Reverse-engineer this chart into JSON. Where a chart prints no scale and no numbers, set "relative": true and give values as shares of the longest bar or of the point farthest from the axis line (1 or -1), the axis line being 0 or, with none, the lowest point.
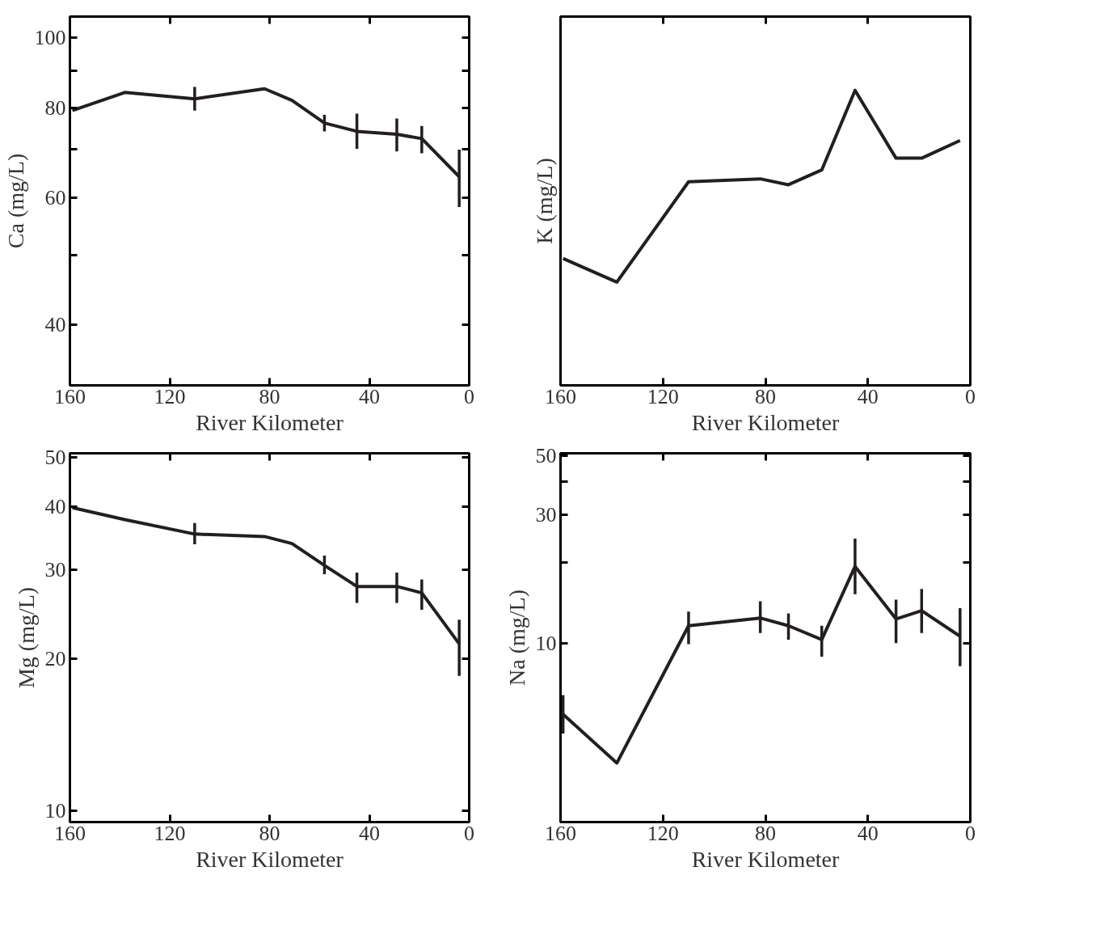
{
  "chart_data": [
    {
      "type": "line",
      "xlabel": "River Kilometer",
      "ylabel": "Ca (mg/L)",
      "log": "y",
      "line_style": "solid",
      "x": [
        159,
        138,
        110,
        82,
        71,
        58,
        45,
        29,
        19,
        4
      ],
      "xlim": [
        160,
        0
      ],
      "xticks": [
        160,
        120,
        80,
        40,
        0
      ],
      "ylim": [
        33,
        107
      ],
      "yticks": [
        {
          "value": 40,
          "label": "40"
        },
        {
          "value": 50,
          "label": null
        },
        {
          "value": 60,
          "label": "60"
        },
        {
          "value": 70,
          "label": null
        },
        {
          "value": 80,
          "label": "80"
        },
        {
          "value": 90,
          "label": null
        },
        {
          "value": 100,
          "label": "100"
        }
      ],
      "series": [
        {
          "color": "#231f20",
          "values": [
            79.3,
            84.0,
            82.3,
            85.0,
            81.9,
            76.2,
            74.2,
            73.5,
            72.5,
            64.2
          ],
          "errors": [
            null,
            null,
            [
              79.3,
              85.5
            ],
            null,
            null,
            [
              74.2,
              78.2
            ],
            [
              70.2,
              78.5
            ],
            [
              69.6,
              77.3
            ],
            [
              69.2,
              75.5
            ],
            [
              58.3,
              70.0
            ]
          ]
        }
      ]
    },
    {
      "type": "line",
      "xlabel": "River Kilometer",
      "ylabel": "K (mg/L)",
      "relative": true,
      "tick_labels": "x",
      "line_style": "solid",
      "x": [
        159,
        138,
        110,
        82,
        71,
        58,
        45,
        29,
        19,
        4
      ],
      "xlim": [
        160,
        0
      ],
      "xticks": [
        160,
        120,
        80,
        40,
        0
      ],
      "series": [
        {
          "color": "#231f20",
          "values": [
            0.43,
            0.35,
            0.69,
            0.7,
            0.68,
            0.73,
            1,
            0.77,
            0.77,
            0.83
          ]
        }
      ]
    },
    {
      "type": "line",
      "xlabel": "River Kilometer",
      "ylabel": "Mg (mg/L)",
      "log": "y",
      "line_style": "solid",
      "x": [
        159,
        138,
        110,
        82,
        71,
        58,
        45,
        29,
        19,
        4
      ],
      "xlim": [
        160,
        0
      ],
      "xticks": [
        160,
        120,
        80,
        40,
        0
      ],
      "ylim": [
        9.5,
        51
      ],
      "yticks": [
        10,
        20,
        30,
        40,
        50
      ],
      "series": [
        {
          "color": "#231f20",
          "values": [
            39.8,
            37.7,
            35.3,
            34.9,
            33.8,
            30.6,
            27.8,
            27.8,
            27.0,
            21.4
          ],
          "errors": [
            null,
            null,
            [
              33.7,
              37.1
            ],
            null,
            null,
            [
              29.4,
              32.0
            ],
            [
              25.8,
              29.6
            ],
            [
              25.8,
              29.6
            ],
            [
              25.0,
              28.7
            ],
            [
              18.5,
              23.9
            ]
          ]
        }
      ]
    },
    {
      "type": "line",
      "xlabel": "River Kilometer",
      "ylabel": "Na (mg/L)",
      "log": "y",
      "line_style": "solid",
      "x": [
        159,
        138,
        110,
        82,
        71,
        58,
        45,
        29,
        19,
        4
      ],
      "xlim": [
        160,
        0
      ],
      "xticks": [
        160,
        120,
        80,
        40,
        0
      ],
      "ylim": [
        2.15,
        51
      ],
      "yticks": [
        10,
        {
          "value": 20,
          "label": null
        },
        30,
        {
          "value": 40,
          "label": null
        },
        50
      ],
      "series": [
        {
          "color": "#231f20",
          "values": [
            5.42,
            3.57,
            11.6,
            12.4,
            11.6,
            10.3,
            19.3,
            12.3,
            13.2,
            10.6
          ],
          "errors": [
            [
              4.6,
              6.4
            ],
            null,
            [
              9.9,
              13.1
            ],
            [
              10.9,
              14.3
            ],
            [
              10.3,
              12.9
            ],
            [
              8.9,
              11.6
            ],
            [
              15.2,
              24.5
            ],
            [
              10.0,
              14.5
            ],
            [
              10.9,
              15.9
            ],
            [
              8.2,
              13.5
            ]
          ]
        }
      ]
    }
  ]
}
